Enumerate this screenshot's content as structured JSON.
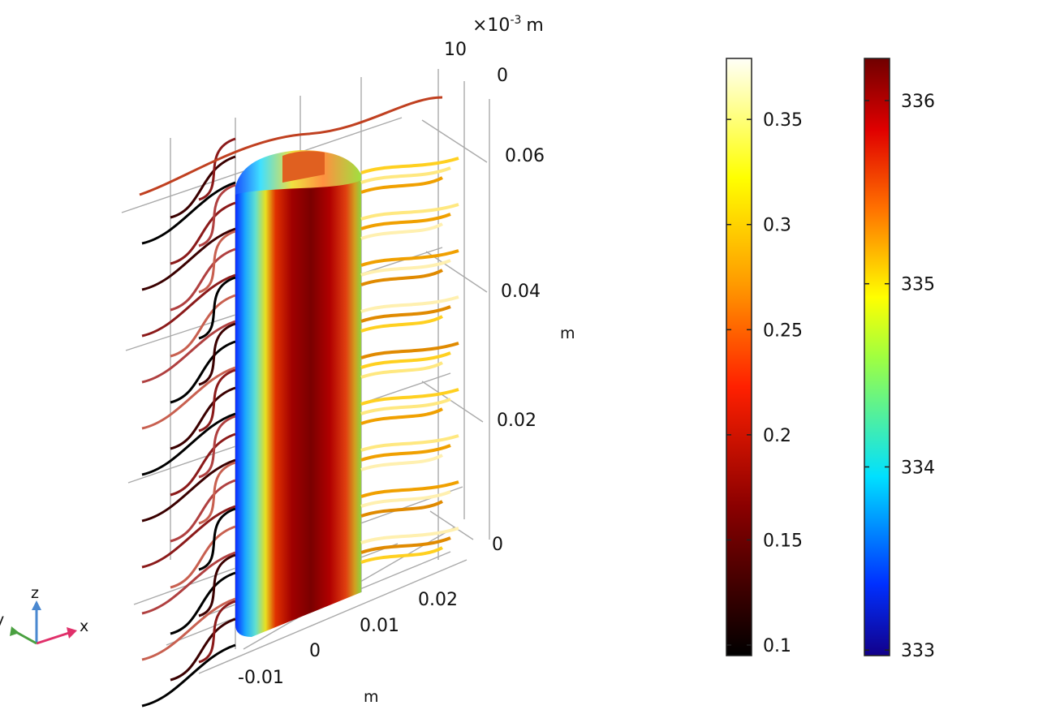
{
  "chart_data": {
    "type": "3d-surface-streamline",
    "title": "",
    "axes": {
      "x": {
        "unit": "m",
        "ticks": [
          "-0.01",
          "0",
          "0.01",
          "0.02"
        ]
      },
      "y": {
        "unit": "×10⁻³ m",
        "multiplier": "×10",
        "exponent": "-3",
        "unit_label": "m",
        "ticks": [
          "10",
          "0"
        ]
      },
      "z": {
        "unit": "m",
        "ticks": [
          "0",
          "0.02",
          "0.04",
          "0.06"
        ]
      }
    },
    "triad": {
      "x": "x",
      "y": "y",
      "z": "z"
    },
    "colorbars": [
      {
        "quantity": "streamline",
        "colormap": "heat",
        "range": [
          0.095,
          0.379
        ],
        "ticks": [
          "0.1",
          "0.15",
          "0.2",
          "0.25",
          "0.3",
          "0.35"
        ],
        "tick_values": [
          0.1,
          0.15,
          0.2,
          0.25,
          0.3,
          0.35
        ]
      },
      {
        "quantity": "surface",
        "colormap": "rainbow",
        "range": [
          332.97,
          336.23
        ],
        "ticks": [
          "333",
          "334",
          "335",
          "336"
        ],
        "tick_values": [
          333,
          334,
          335,
          336
        ]
      }
    ],
    "colors": {
      "heat": [
        "#000000",
        "#8b0000",
        "#ff2000",
        "#ff9900",
        "#ffff00",
        "#ffffff"
      ],
      "rainbow": [
        "#12008a",
        "#0030ff",
        "#00e0ff",
        "#a0ff40",
        "#ffff00",
        "#ff7000",
        "#e00000",
        "#700000"
      ]
    }
  }
}
